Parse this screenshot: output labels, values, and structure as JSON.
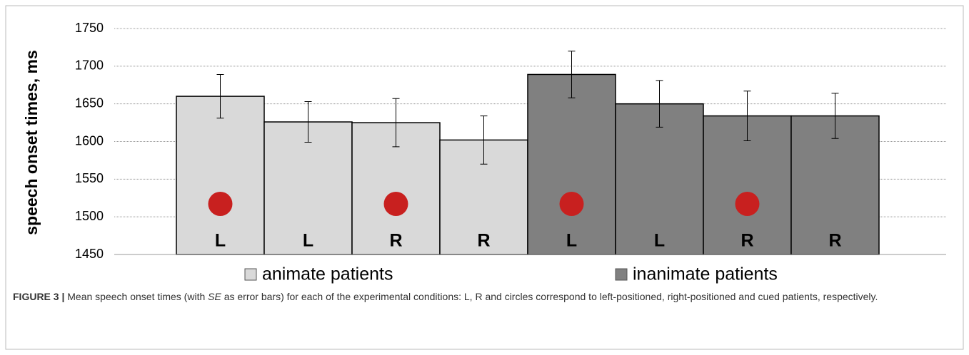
{
  "chart_data": {
    "type": "bar",
    "y_label": "speech onset times, ms",
    "categories": [
      "L",
      "L",
      "R",
      "R",
      "L",
      "L",
      "R",
      "R"
    ],
    "cued": [
      true,
      false,
      true,
      false,
      true,
      false,
      true,
      false
    ],
    "cue_color": "#c8201f",
    "series": [
      {
        "name": "animate patients",
        "color": "#d9d9d9",
        "values": [
          1660,
          1626,
          1625,
          1602,
          null,
          null,
          null,
          null
        ],
        "errors": [
          29,
          27,
          32,
          32,
          null,
          null,
          null,
          null
        ]
      },
      {
        "name": "inanimate patients",
        "color": "#808080",
        "values": [
          null,
          null,
          null,
          null,
          1689,
          1650,
          1634,
          1634
        ],
        "errors": [
          null,
          null,
          null,
          null,
          31,
          31,
          33,
          30
        ]
      }
    ],
    "ylim": [
      1450,
      1750
    ],
    "yticks": [
      1450,
      1500,
      1550,
      1600,
      1650,
      1700,
      1750
    ],
    "grid": true
  },
  "caption": {
    "label": "FIGURE 3 |",
    "text_before": "Mean speech onset times (with ",
    "emphasis": "SE",
    "text_after": " as error bars) for each of the experimental conditions: L, R and circles correspond to left-positioned, right-positioned and cued patients, respectively."
  }
}
